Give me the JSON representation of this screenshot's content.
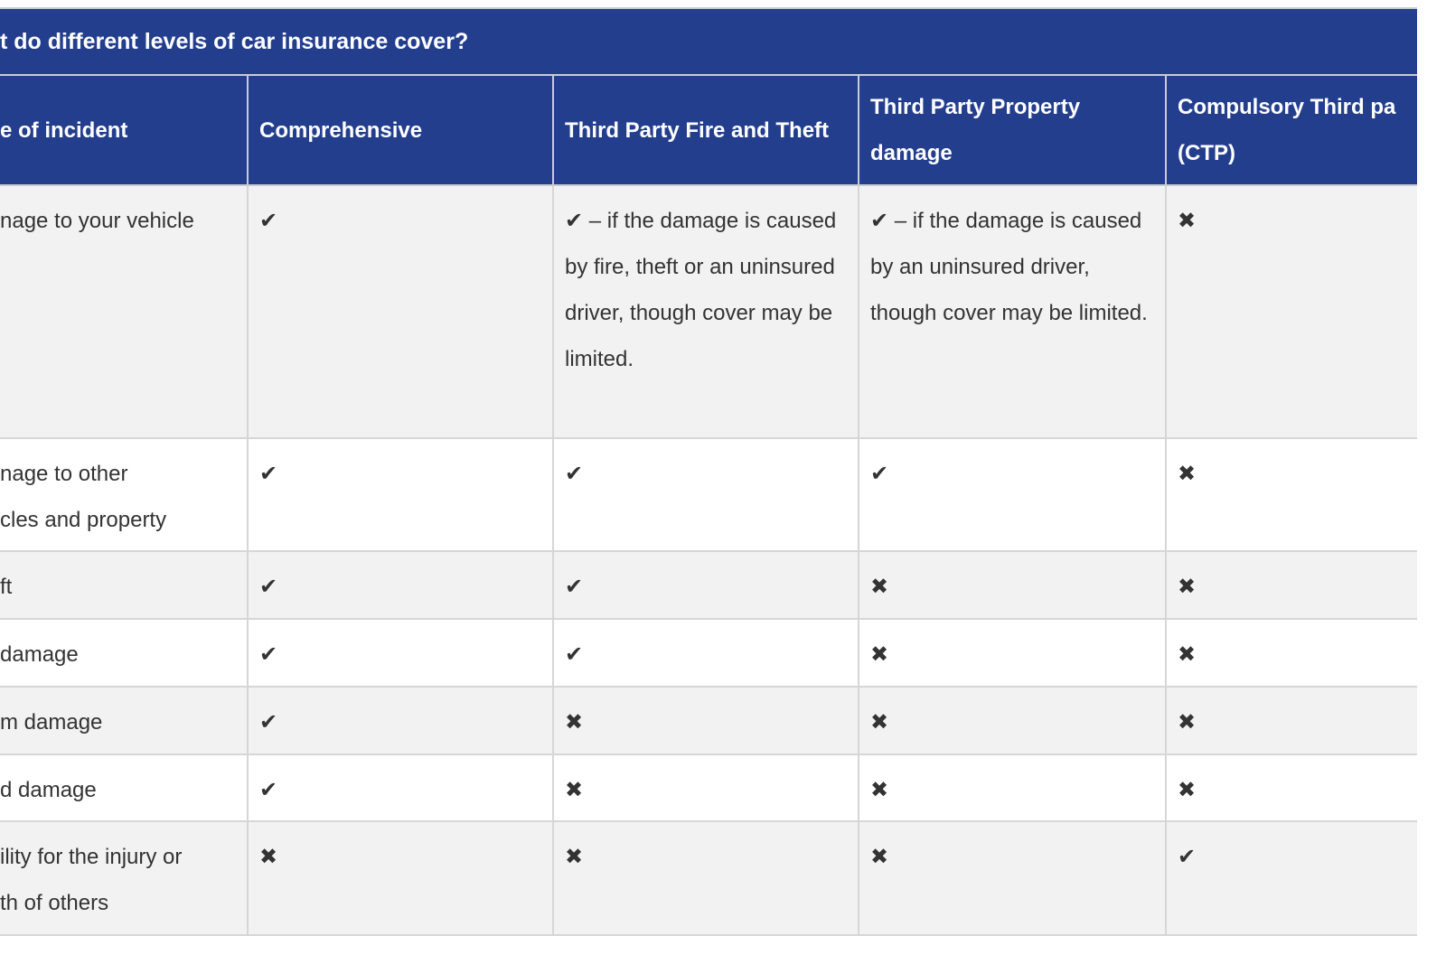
{
  "caption": "t do different levels of car insurance cover?",
  "headers": [
    "e of incident",
    "Comprehensive",
    "Third Party Fire and Theft",
    "Third Party Property damage",
    "Compulsory Third pa (CTP)"
  ],
  "rows": [
    {
      "incident": [
        "nage to your vehicle"
      ],
      "cells": [
        "✔",
        "✔ – if the damage is caused by fire, theft or an uninsured driver, though cover may be limited.",
        "✔ – if the damage is caused by an uninsured driver, though cover may be limited.",
        "✖"
      ]
    },
    {
      "incident": [
        "nage to other",
        "cles and property"
      ],
      "cells": [
        "✔",
        "✔",
        "✔",
        "✖"
      ]
    },
    {
      "incident": [
        "ft"
      ],
      "cells": [
        "✔",
        "✔",
        "✖",
        "✖"
      ]
    },
    {
      "incident": [
        "damage"
      ],
      "cells": [
        "✔",
        "✔",
        "✖",
        "✖"
      ]
    },
    {
      "incident": [
        "m damage"
      ],
      "cells": [
        "✔",
        "✖",
        "✖",
        "✖"
      ]
    },
    {
      "incident": [
        "d damage"
      ],
      "cells": [
        "✔",
        "✖",
        "✖",
        "✖"
      ]
    },
    {
      "incident": [
        "ility for the injury or",
        "th of others"
      ],
      "cells": [
        "✖",
        "✖",
        "✖",
        "✔"
      ]
    }
  ]
}
